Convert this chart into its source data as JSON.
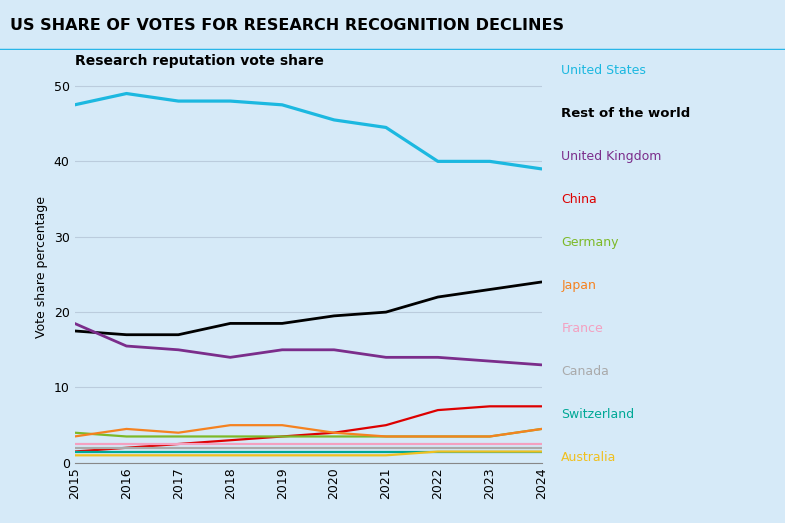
{
  "title": "US SHARE OF VOTES FOR RESEARCH RECOGNITION DECLINES",
  "subtitle": "Research reputation vote share",
  "ylabel": "Vote share percentage",
  "years": [
    2015,
    2016,
    2017,
    2018,
    2019,
    2020,
    2021,
    2022,
    2023,
    2024
  ],
  "series": {
    "United States": [
      47.5,
      49.0,
      48.0,
      48.0,
      47.5,
      45.5,
      44.5,
      40.0,
      40.0,
      39.0
    ],
    "Rest of the world": [
      17.5,
      17.0,
      17.0,
      18.5,
      18.5,
      19.5,
      20.0,
      22.0,
      23.0,
      24.0
    ],
    "United Kingdom": [
      18.5,
      15.5,
      15.0,
      14.0,
      15.0,
      15.0,
      14.0,
      14.0,
      13.5,
      13.0
    ],
    "China": [
      1.5,
      2.0,
      2.5,
      3.0,
      3.5,
      4.0,
      5.0,
      7.0,
      7.5,
      7.5
    ],
    "Germany": [
      4.0,
      3.5,
      3.5,
      3.5,
      3.5,
      3.5,
      3.5,
      3.5,
      3.5,
      4.5
    ],
    "Japan": [
      3.5,
      4.5,
      4.0,
      5.0,
      5.0,
      4.0,
      3.5,
      3.5,
      3.5,
      4.5
    ],
    "France": [
      2.5,
      2.5,
      2.5,
      2.5,
      2.5,
      2.5,
      2.5,
      2.5,
      2.5,
      2.5
    ],
    "Canada": [
      2.0,
      2.0,
      2.0,
      2.0,
      2.0,
      2.0,
      2.0,
      2.0,
      2.0,
      2.0
    ],
    "Switzerland": [
      1.5,
      1.5,
      1.5,
      1.5,
      1.5,
      1.5,
      1.5,
      1.5,
      1.5,
      1.5
    ],
    "Australia": [
      1.0,
      1.0,
      1.0,
      1.0,
      1.0,
      1.0,
      1.0,
      1.5,
      1.5,
      1.5
    ]
  },
  "colors": {
    "United States": "#1CB8E0",
    "Rest of the world": "#000000",
    "United Kingdom": "#7B2D8B",
    "China": "#DD0000",
    "Germany": "#7DB928",
    "Japan": "#F58220",
    "France": "#F4A0C0",
    "Canada": "#AAAAAA",
    "Switzerland": "#00A896",
    "Australia": "#F0C020"
  },
  "legend_bold": [
    "Rest of the world"
  ],
  "background_color": "#D6EAF8",
  "title_bg_color": "#C8E0F0",
  "title_border_color": "#29B6E8",
  "grid_color": "#BBCCDD",
  "ylim": [
    0,
    52
  ],
  "yticks": [
    0,
    10,
    20,
    30,
    40,
    50
  ]
}
